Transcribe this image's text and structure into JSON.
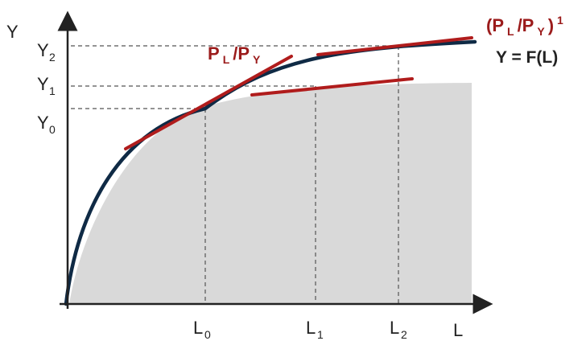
{
  "axes": {
    "y_label": "Y",
    "x_label": "L"
  },
  "y_ticks": [
    {
      "main": "Y",
      "sub": "2"
    },
    {
      "main": "Y",
      "sub": "1"
    },
    {
      "main": "Y",
      "sub": "0"
    }
  ],
  "x_ticks": [
    {
      "main": "L",
      "sub": "0"
    },
    {
      "main": "L",
      "sub": "1"
    },
    {
      "main": "L",
      "sub": "2"
    }
  ],
  "annotations": {
    "slope_label": {
      "a": "P",
      "a_sub": "L",
      "sep": " /P",
      "b_sub": "Y"
    },
    "slope_label_prime": {
      "open": "(P",
      "a_sub": "L",
      "sep": " /P",
      "b_sub": "Y",
      "close": ")",
      "sup": "1"
    },
    "function_label": "Y = F(L)"
  },
  "colors": {
    "curve": "#0f2a45",
    "tangent": "#b01c1c",
    "shade": "#d9d9d9",
    "axis": "#222222",
    "guide": "#555555"
  }
}
